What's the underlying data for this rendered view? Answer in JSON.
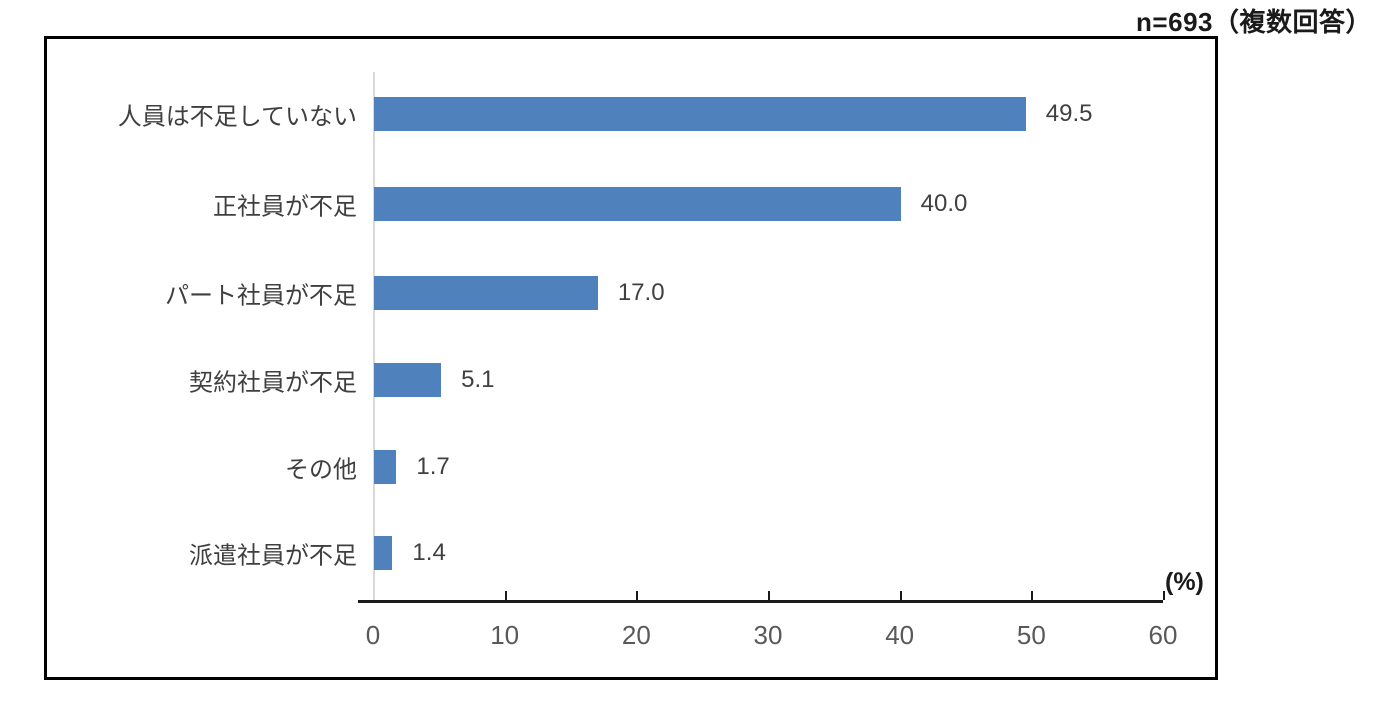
{
  "header": {
    "sample_note": "n=693（複数回答）"
  },
  "chart_data": {
    "type": "bar",
    "orientation": "horizontal",
    "title": "",
    "categories": [
      "人員は不足していない",
      "正社員が不足",
      "パート社員が不足",
      "契約社員が不足",
      "その他",
      "派遣社員が不足"
    ],
    "values": [
      49.5,
      40.0,
      17.0,
      5.1,
      1.7,
      1.4
    ],
    "value_labels": [
      "49.5",
      "40.0",
      "17.0",
      "5.1",
      "1.7",
      "1.4"
    ],
    "x_ticks": [
      "0",
      "10",
      "20",
      "30",
      "40",
      "50",
      "60"
    ],
    "xlim": [
      0,
      60
    ],
    "unit_label": "(%)",
    "grid": "off",
    "legend": "none",
    "colors": {
      "bar": "#4F81BD",
      "axis_baseline": "#1a1a1a",
      "y_axis_line": "#d9d9d9",
      "tick_label": "#595959",
      "category_label": "#3f3f3f",
      "value_label": "#404040"
    }
  }
}
